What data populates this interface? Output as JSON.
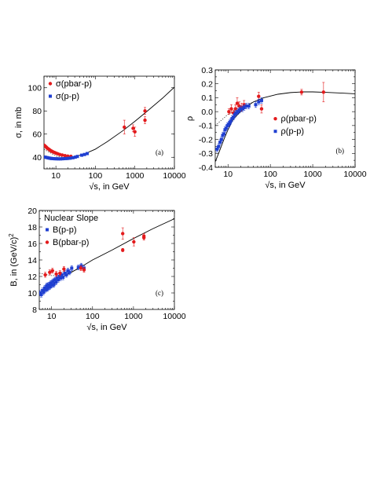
{
  "colors": {
    "pbar": "#e31a1c",
    "pp": "#1f3fd1"
  },
  "chart_data": [
    {
      "id": "a",
      "type": "scatter",
      "panel_label": "(a)",
      "xlabel": "√s, in GeV",
      "ylabel": "σ, in mb",
      "xscale": "log",
      "xlim": [
        5,
        10000
      ],
      "ylim": [
        30,
        110
      ],
      "xticks": [
        {
          "v": 10,
          "t": "10"
        },
        {
          "v": 100,
          "t": "100"
        },
        {
          "v": 1000,
          "t": "1000"
        },
        {
          "v": 10000,
          "t": "10000"
        }
      ],
      "yticks": [
        {
          "v": 40,
          "t": "40"
        },
        {
          "v": 60,
          "t": "60"
        },
        {
          "v": 80,
          "t": "80"
        },
        {
          "v": 100,
          "t": "100"
        }
      ],
      "legend_position": "upper-left",
      "series": [
        {
          "name": "σ(pbar-p)",
          "color_key": "pbar",
          "points": [
            [
              5.0,
              50.5
            ],
            [
              5.3,
              49.8
            ],
            [
              5.6,
              49.0
            ],
            [
              5.9,
              48.3
            ],
            [
              6.2,
              47.6
            ],
            [
              6.6,
              47.0
            ],
            [
              7.0,
              46.3
            ],
            [
              7.4,
              45.7
            ],
            [
              7.9,
              45.2
            ],
            [
              8.5,
              44.6
            ],
            [
              9.2,
              44.1
            ],
            [
              10.0,
              43.6
            ],
            [
              11.0,
              43.1
            ],
            [
              12.5,
              42.4
            ],
            [
              14.5,
              41.9
            ],
            [
              17.0,
              41.4
            ],
            [
              20.0,
              41.0
            ],
            [
              24.0,
              40.8
            ],
            [
              540,
              66.0
            ],
            [
              900,
              65.0
            ],
            [
              1000,
              62.0
            ],
            [
              1800,
              72.0
            ],
            [
              1800,
              80.0
            ]
          ],
          "errors": [
            0,
            0,
            0,
            0,
            0,
            0,
            0,
            0,
            0,
            0,
            0,
            0,
            0,
            0,
            0,
            0,
            0,
            0,
            6,
            3,
            4,
            3,
            3
          ]
        },
        {
          "name": "σ(p-p)",
          "color_key": "pp",
          "points": [
            [
              5.0,
              40.2
            ],
            [
              5.5,
              40.0
            ],
            [
              6.0,
              39.7
            ],
            [
              6.5,
              39.4
            ],
            [
              7.0,
              39.2
            ],
            [
              7.5,
              39.0
            ],
            [
              8.0,
              38.9
            ],
            [
              8.7,
              38.8
            ],
            [
              9.5,
              38.7
            ],
            [
              10.5,
              38.7
            ],
            [
              11.5,
              38.6
            ],
            [
              13.0,
              38.6
            ],
            [
              14.5,
              38.7
            ],
            [
              16.0,
              38.8
            ],
            [
              18.0,
              38.9
            ],
            [
              20.0,
              39.0
            ],
            [
              23.0,
              39.2
            ],
            [
              27.0,
              39.6
            ],
            [
              31.0,
              40.1
            ],
            [
              35.0,
              40.7
            ],
            [
              45.0,
              41.8
            ],
            [
              53.0,
              42.4
            ],
            [
              62.0,
              43.2
            ]
          ],
          "errors": [
            0,
            0,
            0,
            0,
            0,
            0,
            0,
            0,
            0,
            0,
            0,
            0,
            0,
            0,
            0,
            0,
            0,
            0,
            0,
            0,
            0,
            0,
            0
          ]
        }
      ],
      "fit_curve": [
        [
          5,
          39.5
        ],
        [
          10,
          38.6
        ],
        [
          20,
          39.2
        ],
        [
          50,
          42.5
        ],
        [
          100,
          47.0
        ],
        [
          200,
          53.5
        ],
        [
          500,
          63.0
        ],
        [
          1000,
          71.0
        ],
        [
          2000,
          79.5
        ],
        [
          5000,
          91.0
        ],
        [
          10000,
          100.5
        ]
      ],
      "low_energy_fit": [
        [
          5,
          47.0
        ],
        [
          10,
          41.0
        ],
        [
          20,
          39.3
        ]
      ]
    },
    {
      "id": "b",
      "type": "scatter",
      "panel_label": "(b)",
      "xlabel": "√s, in GeV",
      "ylabel": "ρ",
      "xscale": "log",
      "xlim": [
        5,
        10000
      ],
      "ylim": [
        -0.4,
        0.3
      ],
      "xticks": [
        {
          "v": 10,
          "t": "10"
        },
        {
          "v": 100,
          "t": "100"
        },
        {
          "v": 1000,
          "t": "1000"
        },
        {
          "v": 10000,
          "t": "10000"
        }
      ],
      "yticks": [
        {
          "v": -0.4,
          "t": "-0.4"
        },
        {
          "v": -0.3,
          "t": "-0.3"
        },
        {
          "v": -0.2,
          "t": "-0.2"
        },
        {
          "v": -0.1,
          "t": "-0.1"
        },
        {
          "v": 0.0,
          "t": "0.0"
        },
        {
          "v": 0.1,
          "t": "0.1"
        },
        {
          "v": 0.2,
          "t": "0.2"
        },
        {
          "v": 0.3,
          "t": "0.3"
        }
      ],
      "legend_position": "center-right",
      "series": [
        {
          "name": "ρ(pbar-p)",
          "color_key": "pbar",
          "points": [
            [
              10.5,
              0.0
            ],
            [
              12.0,
              0.02
            ],
            [
              13.5,
              -0.01
            ],
            [
              15.0,
              0.02
            ],
            [
              16.5,
              0.06
            ],
            [
              18.5,
              0.04
            ],
            [
              21.0,
              0.03
            ],
            [
              24.0,
              0.05
            ],
            [
              53.0,
              0.11
            ],
            [
              62.0,
              0.02
            ],
            [
              546,
              0.14
            ],
            [
              1800,
              0.14
            ]
          ],
          "errors": [
            0.02,
            0.03,
            0.02,
            0.03,
            0.04,
            0.03,
            0.03,
            0.03,
            0.03,
            0.03,
            0.02,
            0.07
          ]
        },
        {
          "name": "ρ(p-p)",
          "color_key": "pp",
          "points": [
            [
              5.5,
              -0.27
            ],
            [
              6.0,
              -0.25
            ],
            [
              6.5,
              -0.22
            ],
            [
              7.0,
              -0.2
            ],
            [
              7.5,
              -0.17
            ],
            [
              8.0,
              -0.16
            ],
            [
              8.5,
              -0.13
            ],
            [
              9.0,
              -0.12
            ],
            [
              9.7,
              -0.1
            ],
            [
              10.5,
              -0.09
            ],
            [
              11.0,
              -0.08
            ],
            [
              11.5,
              -0.07
            ],
            [
              12.5,
              -0.05
            ],
            [
              13.5,
              -0.04
            ],
            [
              14.5,
              -0.02
            ],
            [
              15.5,
              -0.01
            ],
            [
              17.0,
              0.0
            ],
            [
              18.5,
              0.01
            ],
            [
              20.0,
              0.02
            ],
            [
              22.0,
              0.02
            ],
            [
              24.0,
              0.03
            ],
            [
              27.0,
              0.04
            ],
            [
              31.0,
              0.04
            ],
            [
              45.0,
              0.05
            ],
            [
              53.0,
              0.07
            ],
            [
              62.0,
              0.08
            ]
          ],
          "errors": [
            0.02,
            0.02,
            0.02,
            0.02,
            0.02,
            0.02,
            0.02,
            0.02,
            0.02,
            0.02,
            0.02,
            0.02,
            0.02,
            0.02,
            0.02,
            0.02,
            0.02,
            0.02,
            0.02,
            0.02,
            0.02,
            0.02,
            0.02,
            0.02,
            0.02,
            0.02
          ]
        }
      ],
      "fit_curve": [
        [
          5,
          -0.36
        ],
        [
          6,
          -0.3
        ],
        [
          8,
          -0.2
        ],
        [
          10,
          -0.13
        ],
        [
          13,
          -0.06
        ],
        [
          17,
          -0.02
        ],
        [
          25,
          0.03
        ],
        [
          40,
          0.07
        ],
        [
          70,
          0.1
        ],
        [
          150,
          0.125
        ],
        [
          300,
          0.137
        ],
        [
          600,
          0.142
        ],
        [
          1000,
          0.142
        ],
        [
          2000,
          0.139
        ],
        [
          5000,
          0.133
        ],
        [
          10000,
          0.128
        ]
      ],
      "low_energy_fit": [
        [
          5,
          -0.1
        ],
        [
          10,
          -0.02
        ],
        [
          20,
          0.03
        ],
        [
          40,
          0.07
        ]
      ]
    },
    {
      "id": "c",
      "type": "scatter",
      "panel_label": "(c)",
      "title": "Nuclear Slope",
      "xlabel": "√s, in GeV",
      "ylabel": "B, in  (GeV/c)",
      "ylabel_sup": "2",
      "xscale": "log",
      "xlim": [
        5,
        10000
      ],
      "ylim": [
        8,
        20
      ],
      "xticks": [
        {
          "v": 10,
          "t": "10"
        },
        {
          "v": 100,
          "t": "100"
        },
        {
          "v": 1000,
          "t": "1000"
        },
        {
          "v": 10000,
          "t": "10000"
        }
      ],
      "yticks": [
        {
          "v": 8,
          "t": "8"
        },
        {
          "v": 10,
          "t": "10"
        },
        {
          "v": 12,
          "t": "12"
        },
        {
          "v": 14,
          "t": "14"
        },
        {
          "v": 16,
          "t": "16"
        },
        {
          "v": 18,
          "t": "18"
        },
        {
          "v": 20,
          "t": "20"
        }
      ],
      "legend_position": "upper-left",
      "series": [
        {
          "name": "B(p-p)",
          "color_key": "pp",
          "points": [
            [
              5.2,
              10.0
            ],
            [
              5.6,
              9.8
            ],
            [
              6.0,
              10.3
            ],
            [
              6.4,
              10.1
            ],
            [
              6.8,
              10.6
            ],
            [
              7.2,
              10.4
            ],
            [
              7.6,
              10.9
            ],
            [
              8.0,
              10.5
            ],
            [
              8.5,
              11.0
            ],
            [
              9.0,
              10.7
            ],
            [
              9.5,
              11.2
            ],
            [
              10.0,
              10.9
            ],
            [
              10.7,
              11.4
            ],
            [
              11.3,
              11.0
            ],
            [
              12.0,
              11.6
            ],
            [
              12.8,
              11.3
            ],
            [
              13.6,
              11.8
            ],
            [
              14.5,
              11.6
            ],
            [
              15.5,
              12.0
            ],
            [
              16.5,
              11.8
            ],
            [
              17.5,
              12.2
            ],
            [
              19.0,
              11.9
            ],
            [
              21.0,
              12.4
            ],
            [
              23.0,
              12.2
            ],
            [
              25.0,
              12.7
            ],
            [
              27.5,
              12.5
            ],
            [
              31.0,
              13.0
            ],
            [
              45.0,
              13.1
            ],
            [
              53.0,
              13.3
            ],
            [
              62.0,
              13.0
            ]
          ],
          "errors": [
            0.3,
            0.3,
            0.3,
            0.3,
            0.3,
            0.3,
            0.3,
            0.3,
            0.3,
            0.3,
            0.3,
            0.3,
            0.3,
            0.3,
            0.3,
            0.3,
            0.3,
            0.3,
            0.3,
            0.3,
            0.3,
            0.3,
            0.3,
            0.3,
            0.3,
            0.3,
            0.3,
            0.3,
            0.3,
            0.3
          ]
        },
        {
          "name": "B(pbar-p)",
          "color_key": "pbar",
          "points": [
            [
              7.0,
              12.2
            ],
            [
              9.0,
              12.5
            ],
            [
              10.5,
              12.7
            ],
            [
              13.0,
              12.3
            ],
            [
              16.0,
              12.4
            ],
            [
              20.0,
              12.9
            ],
            [
              52.0,
              13.0
            ],
            [
              62.0,
              12.8
            ],
            [
              546,
              15.2
            ],
            [
              546,
              17.2
            ],
            [
              1020,
              16.2
            ],
            [
              1800,
              16.9
            ],
            [
              1800,
              16.7
            ]
          ],
          "errors": [
            0.3,
            0.3,
            0.3,
            0.3,
            0.3,
            0.3,
            0.3,
            0.3,
            0.2,
            0.7,
            0.5,
            0.3,
            0.3
          ]
        }
      ],
      "fit_curve": [
        [
          5,
          10.0
        ],
        [
          10,
          11.0
        ],
        [
          20,
          12.0
        ],
        [
          50,
          13.1
        ],
        [
          100,
          14.0
        ],
        [
          300,
          15.2
        ],
        [
          1000,
          16.6
        ],
        [
          3000,
          17.8
        ],
        [
          10000,
          19.0
        ]
      ],
      "low_energy_fit": [
        [
          5,
          12.4
        ],
        [
          10,
          12.1
        ],
        [
          20,
          12.2
        ],
        [
          50,
          13.0
        ]
      ]
    }
  ]
}
